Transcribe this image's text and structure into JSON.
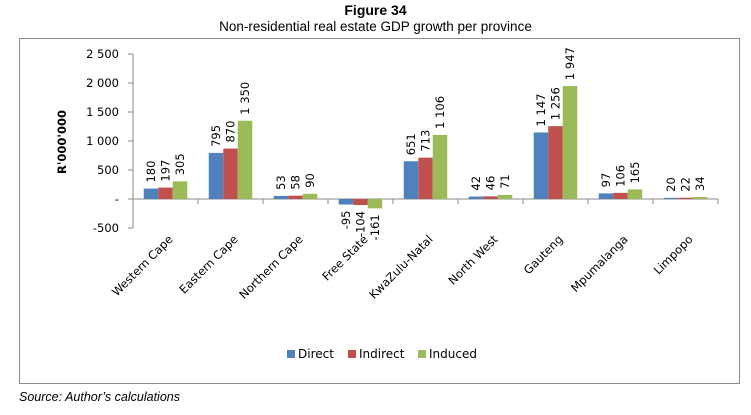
{
  "figure": {
    "number": "Figure 34",
    "source": "Source: Author’s calculations"
  },
  "chart_data": {
    "type": "bar",
    "title": "Figure 34",
    "subtitle": "Non-residential real estate GDP growth per province",
    "xlabel": "",
    "ylabel": "R'000'000",
    "ylim": [
      -500,
      2500
    ],
    "yticks": [
      -500,
      0,
      500,
      1000,
      1500,
      2000,
      2500
    ],
    "ytick_labels": [
      "-500",
      "-",
      "500",
      "1 000",
      "1 500",
      "2 000",
      "2 500"
    ],
    "grid": false,
    "legend_position": "bottom",
    "categories": [
      "Western Cape",
      "Eastern Cape",
      "Northern Cape",
      "Free State",
      "KwaZulu-Natal",
      "North West",
      "Gauteng",
      "Mpumalanga",
      "Limpopo"
    ],
    "series": [
      {
        "name": "Direct",
        "color": "#4f81bd",
        "values": [
          180,
          795,
          53,
          -95,
          651,
          42,
          1147,
          97,
          20
        ],
        "labels": [
          "180",
          "795",
          "53",
          "-95",
          "651",
          "42",
          "1 147",
          "97",
          "20"
        ]
      },
      {
        "name": "Indirect",
        "color": "#c0504d",
        "values": [
          197,
          870,
          58,
          -104,
          713,
          46,
          1256,
          106,
          22
        ],
        "labels": [
          "197",
          "870",
          "58",
          "-104",
          "713",
          "46",
          "1 256",
          "106",
          "22"
        ]
      },
      {
        "name": "Induced",
        "color": "#9bbb59",
        "values": [
          305,
          1350,
          90,
          -161,
          1106,
          71,
          1947,
          165,
          34
        ],
        "labels": [
          "305",
          "1 350",
          "90",
          "-161",
          "1 106",
          "71",
          "1 947",
          "165",
          "34"
        ]
      }
    ]
  }
}
